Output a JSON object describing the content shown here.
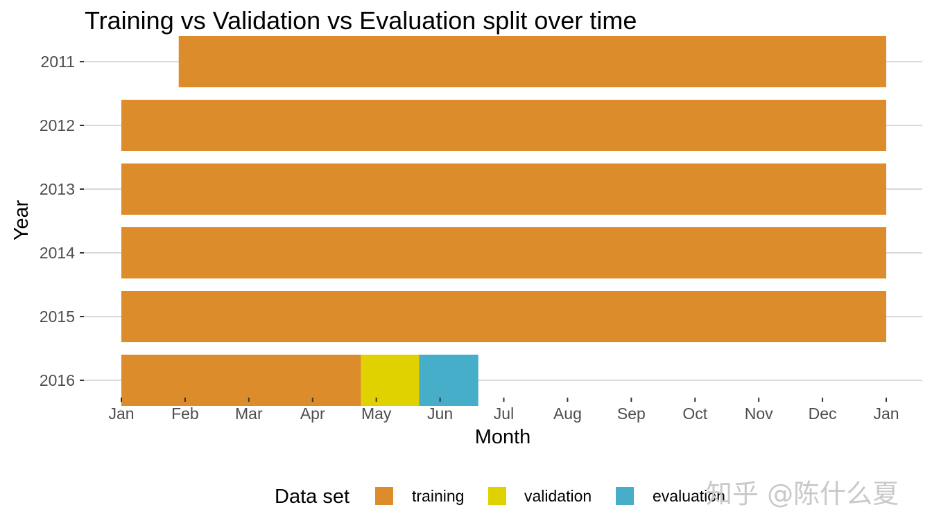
{
  "chart_data": {
    "type": "bar",
    "orientation": "horizontal-timeline",
    "title": "Training vs Validation vs Evaluation split over time",
    "xlabel": "Month",
    "ylabel": "Year",
    "x_ticks": [
      "Jan",
      "Feb",
      "Mar",
      "Apr",
      "May",
      "Jun",
      "Jul",
      "Aug",
      "Sep",
      "Oct",
      "Nov",
      "Dec",
      "Jan"
    ],
    "y_categories": [
      "2011",
      "2012",
      "2013",
      "2014",
      "2015",
      "2016"
    ],
    "xlim_months": [
      0,
      12
    ],
    "series": [
      {
        "name": "training",
        "color": "#dc8c2b",
        "segments": [
          {
            "year": "2011",
            "start": 0.9,
            "end": 12
          },
          {
            "year": "2012",
            "start": 0,
            "end": 12
          },
          {
            "year": "2013",
            "start": 0,
            "end": 12
          },
          {
            "year": "2014",
            "start": 0,
            "end": 12
          },
          {
            "year": "2015",
            "start": 0,
            "end": 12
          },
          {
            "year": "2016",
            "start": 0,
            "end": 3.76
          }
        ]
      },
      {
        "name": "validation",
        "color": "#e0d100",
        "segments": [
          {
            "year": "2016",
            "start": 3.76,
            "end": 4.67
          }
        ]
      },
      {
        "name": "evaluation",
        "color": "#46aec8",
        "segments": [
          {
            "year": "2016",
            "start": 4.67,
            "end": 5.6
          }
        ]
      }
    ],
    "legend": {
      "title": "Data set",
      "position": "bottom",
      "items": [
        "training",
        "validation",
        "evaluation"
      ]
    },
    "grid": "horizontal"
  },
  "watermark": "知乎 @陈什么夏"
}
